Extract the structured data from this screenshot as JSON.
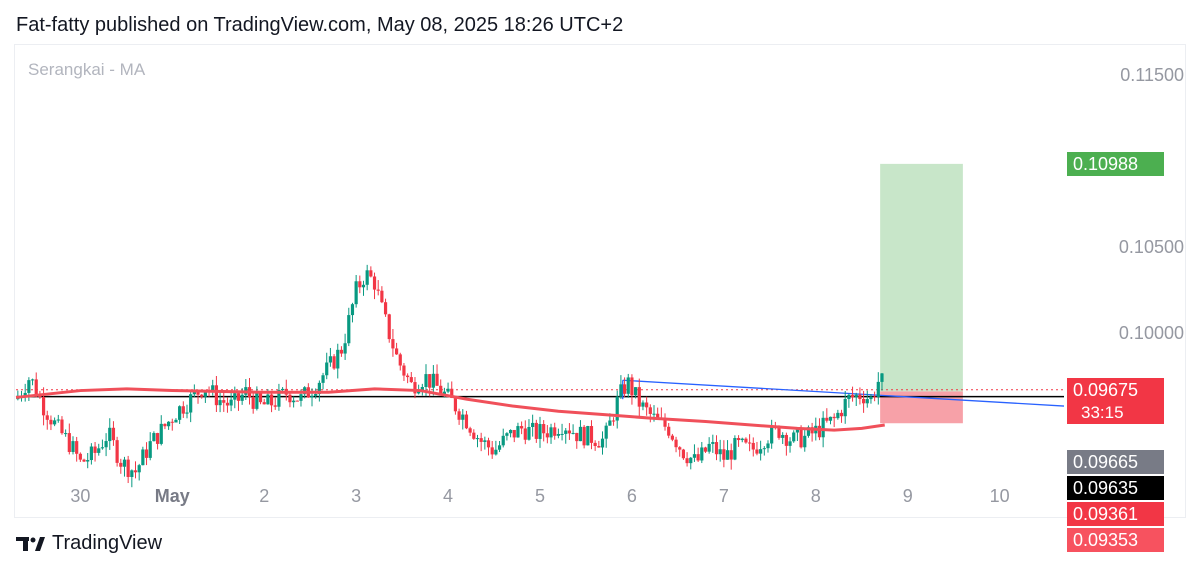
{
  "header": {
    "text": "Fat-fatty published on TradingView.com, May 08, 2025 18:26 UTC+2"
  },
  "footer": {
    "brand": "TradingView",
    "logo_icon": "tradingview-logo-icon"
  },
  "chart_data": {
    "type": "candlestick",
    "series_label": "Serangkai - MA",
    "y_ticks": [
      "0.11500",
      "0.10500",
      "0.10000"
    ],
    "y_tick_values": [
      0.115,
      0.105,
      0.1
    ],
    "x_ticks": [
      {
        "label": "30",
        "x": 0.0,
        "bold": false
      },
      {
        "label": "May",
        "x": 1.0,
        "bold": true
      },
      {
        "label": "2",
        "x": 2.0,
        "bold": false
      },
      {
        "label": "3",
        "x": 3.0,
        "bold": false
      },
      {
        "label": "4",
        "x": 4.0,
        "bold": false
      },
      {
        "label": "5",
        "x": 5.0,
        "bold": false
      },
      {
        "label": "6",
        "x": 6.0,
        "bold": false
      },
      {
        "label": "7",
        "x": 7.0,
        "bold": false
      },
      {
        "label": "8",
        "x": 8.0,
        "bold": false
      },
      {
        "label": "9",
        "x": 9.0,
        "bold": false
      },
      {
        "label": "10",
        "x": 10.0,
        "bold": false
      }
    ],
    "ylim": [
      0.0915,
      0.1165
    ],
    "xlim": [
      -0.7,
      10.7
    ],
    "price_path": [
      [
        -0.7,
        0.0962
      ],
      [
        -0.55,
        0.0975
      ],
      [
        -0.4,
        0.0958
      ],
      [
        -0.25,
        0.0945
      ],
      [
        -0.1,
        0.0935
      ],
      [
        0.0,
        0.0925
      ],
      [
        0.15,
        0.093
      ],
      [
        0.3,
        0.0942
      ],
      [
        0.45,
        0.0925
      ],
      [
        0.6,
        0.092
      ],
      [
        0.75,
        0.0935
      ],
      [
        0.9,
        0.0945
      ],
      [
        1.05,
        0.0955
      ],
      [
        1.2,
        0.0962
      ],
      [
        1.35,
        0.097
      ],
      [
        1.5,
        0.0962
      ],
      [
        1.65,
        0.0958
      ],
      [
        1.8,
        0.0966
      ],
      [
        1.95,
        0.0958
      ],
      [
        2.1,
        0.096
      ],
      [
        2.25,
        0.0966
      ],
      [
        2.4,
        0.0962
      ],
      [
        2.55,
        0.097
      ],
      [
        2.7,
        0.098
      ],
      [
        2.85,
        0.0992
      ],
      [
        3.0,
        0.1025
      ],
      [
        3.1,
        0.1035
      ],
      [
        3.2,
        0.103
      ],
      [
        3.3,
        0.101
      ],
      [
        3.45,
        0.0985
      ],
      [
        3.6,
        0.097
      ],
      [
        3.75,
        0.0975
      ],
      [
        3.9,
        0.0968
      ],
      [
        4.05,
        0.096
      ],
      [
        4.2,
        0.095
      ],
      [
        4.35,
        0.0938
      ],
      [
        4.5,
        0.0932
      ],
      [
        4.65,
        0.094
      ],
      [
        4.8,
        0.0945
      ],
      [
        4.95,
        0.0942
      ],
      [
        5.1,
        0.0944
      ],
      [
        5.25,
        0.0948
      ],
      [
        5.4,
        0.0942
      ],
      [
        5.55,
        0.094
      ],
      [
        5.7,
        0.0938
      ],
      [
        5.85,
        0.0962
      ],
      [
        5.95,
        0.0972
      ],
      [
        6.1,
        0.0958
      ],
      [
        6.25,
        0.095
      ],
      [
        6.4,
        0.0945
      ],
      [
        6.55,
        0.0932
      ],
      [
        6.7,
        0.0925
      ],
      [
        6.85,
        0.0935
      ],
      [
        7.0,
        0.0928
      ],
      [
        7.15,
        0.0935
      ],
      [
        7.3,
        0.0932
      ],
      [
        7.45,
        0.094
      ],
      [
        7.6,
        0.0944
      ],
      [
        7.75,
        0.0938
      ],
      [
        7.9,
        0.094
      ],
      [
        8.05,
        0.0945
      ],
      [
        8.2,
        0.095
      ],
      [
        8.35,
        0.0962
      ],
      [
        8.5,
        0.0965
      ],
      [
        8.6,
        0.0962
      ],
      [
        8.7,
        0.0975
      ],
      [
        8.75,
        0.0967
      ]
    ],
    "moving_average": [
      [
        -0.7,
        0.0963
      ],
      [
        0.0,
        0.0967
      ],
      [
        0.5,
        0.0968
      ],
      [
        1.0,
        0.0967
      ],
      [
        2.0,
        0.0966
      ],
      [
        2.7,
        0.0966
      ],
      [
        3.2,
        0.0968
      ],
      [
        3.7,
        0.0967
      ],
      [
        4.2,
        0.0962
      ],
      [
        4.7,
        0.0958
      ],
      [
        5.2,
        0.0955
      ],
      [
        5.7,
        0.0953
      ],
      [
        6.2,
        0.0951
      ],
      [
        6.8,
        0.0949
      ],
      [
        7.3,
        0.0947
      ],
      [
        7.8,
        0.0945
      ],
      [
        8.2,
        0.0944
      ],
      [
        8.5,
        0.0945
      ],
      [
        8.75,
        0.0947
      ]
    ],
    "horizontal_line": 0.09635,
    "dotted_line": 0.09675,
    "trendline": [
      [
        5.9,
        0.0973
      ],
      [
        10.7,
        0.0958
      ]
    ],
    "trendline_top": [
      [
        5.9,
        0.0973
      ],
      [
        8.75,
        0.0966
      ]
    ],
    "position": {
      "x_start": 8.7,
      "x_end": 9.6,
      "entry": 0.09665,
      "target": 0.10988,
      "stop": 0.0948
    },
    "price_labels": [
      {
        "text": "0.10988",
        "value": 0.10988,
        "bg": "#4caf50",
        "color": "#ffffff"
      },
      {
        "text": "0.09675",
        "value": 0.09675,
        "bg": "#f23645",
        "color": "#ffffff"
      },
      {
        "text": "0.09665",
        "value": 0.09665,
        "bg": "#787b86",
        "color": "#ffffff"
      },
      {
        "text": "0.09635",
        "value": 0.09635,
        "bg": "#000000",
        "color": "#ffffff"
      },
      {
        "text": "0.09361",
        "value": 0.09361,
        "bg": "#f23645",
        "color": "#ffffff"
      },
      {
        "text": "0.09353",
        "value": 0.09353,
        "bg": "#f7525f",
        "color": "#ffffff"
      }
    ],
    "countdown": {
      "text": "33:15",
      "bg": "#f23645",
      "color": "#ffffff"
    },
    "colors": {
      "up": "#089981",
      "down": "#f23645",
      "ma": "#f0505a",
      "trend": "#2962ff",
      "profit": "#c8e6c9",
      "loss": "#f7a1a8",
      "hline": "#000000",
      "dotted": "#f23645"
    }
  }
}
